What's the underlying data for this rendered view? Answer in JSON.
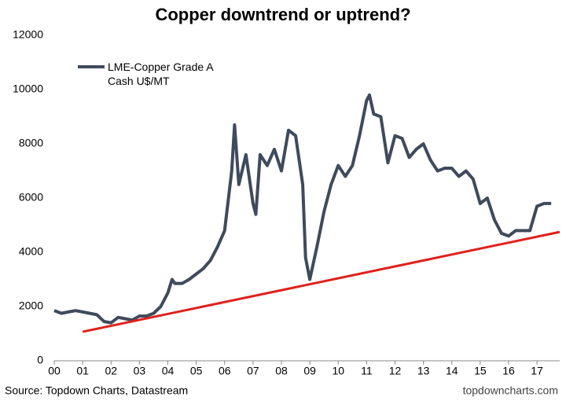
{
  "chart_data": {
    "type": "line",
    "title": "Copper downtrend or uptrend?",
    "source": "Source: Topdown Charts, Datastream",
    "credit": "topdowncharts.com",
    "x": [
      0,
      0.25,
      0.5,
      0.75,
      1.0,
      1.25,
      1.5,
      1.75,
      2.0,
      2.25,
      2.5,
      2.75,
      3.0,
      3.25,
      3.5,
      3.75,
      4.0,
      4.15,
      4.25,
      4.5,
      4.75,
      5.0,
      5.25,
      5.5,
      5.75,
      6.0,
      6.25,
      6.35,
      6.5,
      6.75,
      7.0,
      7.1,
      7.25,
      7.5,
      7.75,
      8.0,
      8.25,
      8.5,
      8.75,
      8.85,
      9.0,
      9.25,
      9.5,
      9.75,
      10.0,
      10.25,
      10.5,
      10.75,
      11.0,
      11.1,
      11.25,
      11.5,
      11.75,
      12.0,
      12.25,
      12.5,
      12.75,
      13.0,
      13.25,
      13.5,
      13.75,
      14.0,
      14.25,
      14.5,
      14.75,
      15.0,
      15.25,
      15.5,
      15.75,
      16.0,
      16.25,
      16.5,
      16.75,
      17.0,
      17.25,
      17.5
    ],
    "series": [
      {
        "name": "LME-Copper Grade A Cash U$/MT",
        "color": "#3f4a5c",
        "values": [
          1850,
          1750,
          1800,
          1850,
          1800,
          1750,
          1700,
          1450,
          1400,
          1600,
          1550,
          1500,
          1650,
          1650,
          1750,
          2000,
          2500,
          3000,
          2850,
          2850,
          3000,
          3200,
          3400,
          3700,
          4200,
          4800,
          7000,
          8700,
          6500,
          7600,
          5800,
          5400,
          7600,
          7200,
          7800,
          7000,
          8500,
          8300,
          6500,
          3800,
          3000,
          4200,
          5500,
          6500,
          7200,
          6800,
          7200,
          8300,
          9600,
          9800,
          9100,
          9000,
          7300,
          8300,
          8200,
          7500,
          7800,
          8000,
          7400,
          7000,
          7100,
          7100,
          6800,
          7000,
          6700,
          5800,
          6000,
          5200,
          4700,
          4600,
          4800,
          4800,
          4800,
          5700,
          5800,
          5800
        ]
      }
    ],
    "trendline": {
      "x": [
        1,
        17.8
      ],
      "values": [
        1070,
        4750
      ],
      "color": "#e0201c"
    },
    "xlim": [
      0,
      17.8
    ],
    "xticks": [
      {
        "value": 0,
        "label": "00"
      },
      {
        "value": 1,
        "label": "01"
      },
      {
        "value": 2,
        "label": "02"
      },
      {
        "value": 3,
        "label": "03"
      },
      {
        "value": 4,
        "label": "04"
      },
      {
        "value": 5,
        "label": "05"
      },
      {
        "value": 6,
        "label": "06"
      },
      {
        "value": 7,
        "label": "07"
      },
      {
        "value": 8,
        "label": "08"
      },
      {
        "value": 9,
        "label": "09"
      },
      {
        "value": 10,
        "label": "10"
      },
      {
        "value": 11,
        "label": "11"
      },
      {
        "value": 12,
        "label": "12"
      },
      {
        "value": 13,
        "label": "13"
      },
      {
        "value": 14,
        "label": "14"
      },
      {
        "value": 15,
        "label": "15"
      },
      {
        "value": 16,
        "label": "16"
      },
      {
        "value": 17,
        "label": "17"
      }
    ],
    "ylim": [
      0,
      12000
    ],
    "yticks": [
      0,
      2000,
      4000,
      6000,
      8000,
      10000,
      12000
    ],
    "grid": false,
    "legend": "top-left"
  }
}
